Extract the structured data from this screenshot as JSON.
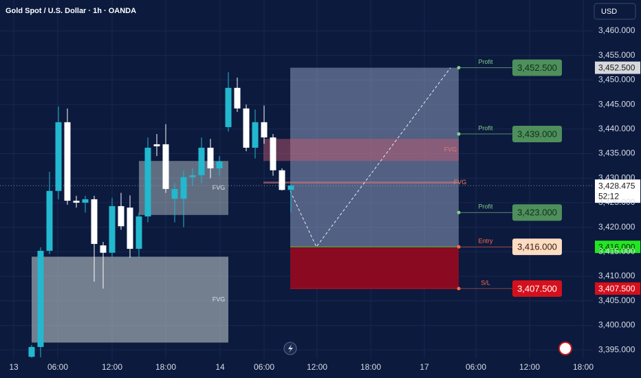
{
  "header": {
    "title": "Gold Spot / U.S. Dollar · 1h · OANDA",
    "currency": "USD"
  },
  "chart_data": {
    "type": "candlestick",
    "up_color": "#22b8cf",
    "down_color": "#ffffff",
    "ylim": [
      3393.2,
      3466.3
    ],
    "yticks": [
      {
        "value": 3395,
        "label": "3,395.000"
      },
      {
        "value": 3400,
        "label": "3,400.000"
      },
      {
        "value": 3405,
        "label": "3,405.000"
      },
      {
        "value": 3410,
        "label": "3,410.000"
      },
      {
        "value": 3415,
        "label": "3,415.000"
      },
      {
        "value": 3420,
        "label": "3,420.000"
      },
      {
        "value": 3425,
        "label": "3,425.000"
      },
      {
        "value": 3430,
        "label": "3,430.000"
      },
      {
        "value": 3435,
        "label": "3,435.000"
      },
      {
        "value": 3440,
        "label": "3,440.000"
      },
      {
        "value": 3445,
        "label": "3,445.000"
      },
      {
        "value": 3450,
        "label": "3,450.000"
      },
      {
        "value": 3455,
        "label": "3,455.000"
      },
      {
        "value": 3460,
        "label": "3,460.000"
      }
    ],
    "xticks": [
      "13",
      "06:00",
      "12:00",
      "18:00",
      "14",
      "06:00",
      "12:00",
      "18:00",
      "17",
      "06:00",
      "12:00",
      "18:00"
    ],
    "grid": true,
    "candles": [
      [
        3393.6,
        3396.0,
        3393.4,
        3395.6
      ],
      [
        3395.6,
        3415.9,
        3393.5,
        3415.2
      ],
      [
        3415.2,
        3431.3,
        3414.5,
        3427.4
      ],
      [
        3427.4,
        3444.6,
        3425.7,
        3441.4
      ],
      [
        3441.4,
        3444.2,
        3424.6,
        3425.4
      ],
      [
        3425.4,
        3426.4,
        3424.0,
        3425.0
      ],
      [
        3425.0,
        3426.4,
        3423.0,
        3425.7
      ],
      [
        3425.7,
        3426.4,
        3408.9,
        3416.6
      ],
      [
        3416.3,
        3417.0,
        3407.5,
        3414.8
      ],
      [
        3414.8,
        3426.0,
        3413.8,
        3424.3
      ],
      [
        3424.3,
        3427.0,
        3419.5,
        3420.2
      ],
      [
        3424.0,
        3426.5,
        3413.8,
        3415.6
      ],
      [
        3415.6,
        3423.0,
        3413.8,
        3422.2
      ],
      [
        3422.2,
        3438.3,
        3421.0,
        3436.2
      ],
      [
        3436.9,
        3439.0,
        3434.5,
        3436.5
      ],
      [
        3436.9,
        3441.0,
        3427.0,
        3427.8
      ],
      [
        3425.8,
        3429.0,
        3421.0,
        3427.8
      ],
      [
        3425.8,
        3431.5,
        3420.0,
        3430.2
      ],
      [
        3430.2,
        3432.0,
        3428.5,
        3430.6
      ],
      [
        3430.6,
        3438.3,
        3429.0,
        3436.2
      ],
      [
        3436.2,
        3438.0,
        3430.0,
        3432.0
      ],
      [
        3432.0,
        3434.5,
        3430.5,
        3433.4
      ],
      [
        3440.4,
        3451.6,
        3439.5,
        3448.4
      ],
      [
        3448.4,
        3450.5,
        3443.5,
        3444.2
      ],
      [
        3444.2,
        3445.0,
        3435.5,
        3436.2
      ],
      [
        3436.2,
        3444.0,
        3434.0,
        3441.4
      ],
      [
        3441.4,
        3444.8,
        3437.0,
        3438.3
      ],
      [
        3438.3,
        3439.0,
        3430.5,
        3431.6
      ],
      [
        3431.6,
        3432.0,
        3427.5,
        3427.6
      ],
      [
        3427.6,
        3428.6,
        3423.0,
        3428.5
      ]
    ],
    "zones": [
      {
        "label": "FVG",
        "low": 3396.5,
        "high": 3414.0
      },
      {
        "label": "FVG",
        "low": 3422.5,
        "high": 3433.5
      },
      {
        "label": "FVG",
        "low": 3433.5,
        "high": 3438.0
      },
      {
        "label": "FVG",
        "low": 3428.9,
        "high": 3429.3
      }
    ],
    "levels": [
      {
        "name": "Profit",
        "value": 3452.5,
        "value_label": "3,452.500",
        "color": "#4e8f5c",
        "tag": true
      },
      {
        "name": "Profit",
        "value": 3439,
        "value_label": "3,439.000",
        "color": "#4e8f5c",
        "tag": false
      },
      {
        "name": "Profit",
        "value": 3423,
        "value_label": "3,423.000",
        "color": "#4e8f5c",
        "tag": false
      },
      {
        "name": "Entry",
        "value": 3416,
        "value_label": "3,416.000",
        "color": "#fcdcc2",
        "tag": true
      },
      {
        "name": "S/L",
        "value": 3407.5,
        "value_label": "3,407.500",
        "color": "#d4101c",
        "tag": true
      }
    ],
    "last_price": {
      "value": 3428.475,
      "label": "3,428.475",
      "countdown": "52:12"
    }
  }
}
